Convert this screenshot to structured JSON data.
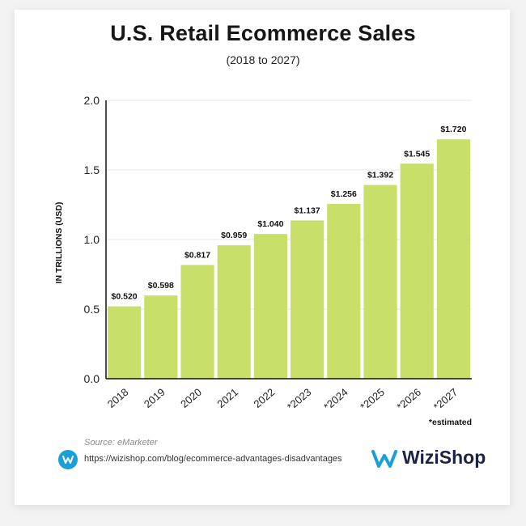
{
  "chart_data": {
    "type": "bar",
    "title": "U.S. Retail Ecommerce Sales",
    "subtitle": "(2018 to 2027)",
    "ylabel": "IN TRILLIONS (USD)",
    "categories": [
      "2018",
      "2019",
      "2020",
      "2021",
      "2022",
      "*2023",
      "*2024",
      "*2025",
      "*2026",
      "*2027"
    ],
    "values": [
      0.52,
      0.598,
      0.817,
      0.959,
      1.04,
      1.137,
      1.256,
      1.392,
      1.545,
      1.72
    ],
    "data_labels": [
      "$0.520",
      "$0.598",
      "$0.817",
      "$0.959",
      "$1.040",
      "$1.137",
      "$1.256",
      "$1.392",
      "$1.545",
      "$1.720"
    ],
    "yticks": [
      "0.0",
      "0.5",
      "1.0",
      "1.5",
      "2.0"
    ],
    "ylim": [
      0,
      2.0
    ],
    "grid": true,
    "bar_color": "#c8e06a",
    "footnote": "*estimated"
  },
  "footer": {
    "source": "Source: eMarketer",
    "url": "https://wizishop.com/blog/ecommerce-advantages-disadvantages",
    "brand": "WiziShop"
  },
  "colors": {
    "brand_blue": "#1aa0d6",
    "brand_navy": "#1b2440"
  },
  "icons": {
    "link": "wizishop-w-icon",
    "logo": "wizishop-logo-icon"
  }
}
